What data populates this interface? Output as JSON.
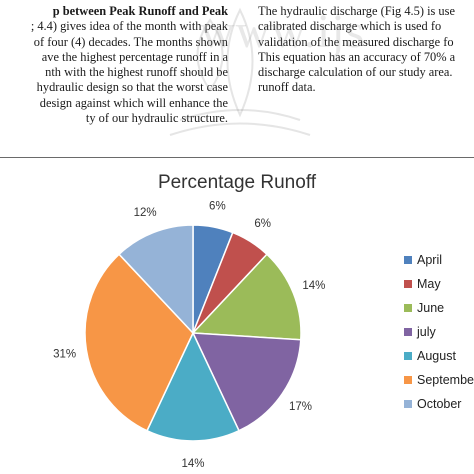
{
  "article": {
    "left_lines": [
      {
        "text": "p   between   Peak   Runoff   and   Peak",
        "bold": true
      },
      {
        "text": "; 4.4) gives idea of the month with peak",
        "bold": false
      },
      {
        "text": "of four (4) decades. The months shown",
        "bold": false
      },
      {
        "text": "ave the highest percentage runoff in a",
        "bold": false
      },
      {
        "text": "nth  with  the  highest  runoff  should  be",
        "bold": false
      },
      {
        "text": " hydraulic design so that the worst case",
        "bold": false
      },
      {
        "text": "design against which will enhance the",
        "bold": false
      },
      {
        "text": "ty of our hydraulic structure.",
        "bold": false
      }
    ],
    "right_lines": [
      "The hydraulic discharge (Fig 4.5) is use",
      "calibrated  discharge  which  is  used  fo",
      "validation of   the measured discharge fo",
      "This equation has an accuracy of 70% a",
      "discharge calculation of our study area.",
      "runoff data."
    ]
  },
  "watermark": "www.ijs",
  "chart_data": {
    "type": "pie",
    "title": "Percentage Runoff",
    "categories": [
      "April",
      "May",
      "June",
      "july",
      "August",
      "September",
      "October"
    ],
    "values": [
      6,
      6,
      14,
      17,
      14,
      31,
      12
    ],
    "labels": [
      "6%",
      "6%",
      "14%",
      "17%",
      "14%",
      "31%",
      "12%"
    ],
    "colors": [
      "#4f81bd",
      "#c0504d",
      "#9bbb59",
      "#8064a2",
      "#4bacc6",
      "#f79646",
      "#95b3d7"
    ],
    "start": "12 o'clock, clockwise",
    "legend_position": "right"
  }
}
